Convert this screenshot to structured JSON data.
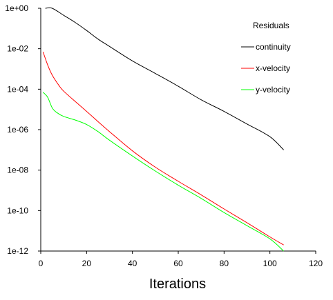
{
  "chart_data": {
    "type": "line",
    "title": "",
    "xlabel": "Iterations",
    "ylabel": "",
    "y_scale": "log",
    "xlim": [
      0,
      120
    ],
    "ylim": [
      1e-12,
      1
    ],
    "x_ticks": [
      "0",
      "20",
      "40",
      "60",
      "80",
      "100",
      "120"
    ],
    "y_ticks": [
      "1e-12",
      "1e-10",
      "1e-08",
      "1e-06",
      "1e-04",
      "1e-02",
      "1e+00"
    ],
    "grid": false,
    "legend": {
      "title": "Residuals",
      "placement": "top-right"
    },
    "series": [
      {
        "name": "continuity",
        "color": "#000000",
        "x": [
          2,
          5,
          10,
          15,
          20,
          25,
          30,
          40,
          50,
          60,
          70,
          80,
          90,
          100,
          106
        ],
        "y": [
          1.0,
          1.0,
          0.45,
          0.2,
          0.08,
          0.03,
          0.013,
          0.0025,
          0.0006,
          0.00014,
          3e-05,
          8e-06,
          1.9e-06,
          4.5e-07,
          1e-07
        ]
      },
      {
        "name": "x-velocity",
        "color": "#ff0000",
        "x": [
          1,
          3,
          5,
          8,
          10,
          15,
          20,
          25,
          30,
          40,
          50,
          60,
          70,
          80,
          90,
          100,
          106
        ],
        "y": [
          0.007,
          0.0016,
          0.0005,
          0.00015,
          8e-05,
          2.5e-05,
          8e-06,
          2.5e-06,
          8e-07,
          9e-08,
          1.4e-08,
          2.8e-09,
          6e-10,
          1.2e-10,
          2.5e-11,
          5e-12,
          2e-12
        ]
      },
      {
        "name": "y-velocity",
        "color": "#00ff00",
        "x": [
          1,
          3,
          5,
          7,
          10,
          15,
          20,
          25,
          30,
          40,
          50,
          60,
          70,
          80,
          90,
          100,
          106
        ],
        "y": [
          7e-05,
          4e-05,
          1.2e-05,
          7e-06,
          4.5e-06,
          3e-06,
          1.8e-06,
          8e-07,
          3e-07,
          5e-08,
          9e-09,
          1.8e-09,
          4e-10,
          8e-11,
          1.8e-11,
          4e-12,
          1e-12
        ]
      }
    ]
  }
}
